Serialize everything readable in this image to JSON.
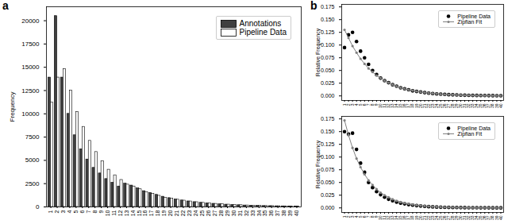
{
  "chart_data": [
    {
      "type": "bar",
      "title": "a",
      "ylabel": "Frequency",
      "categories": [
        "1",
        "2",
        "3",
        "4",
        "5",
        "6",
        "7",
        "8",
        "9",
        "10",
        "11",
        "12",
        "13",
        "14",
        "15",
        "16",
        "17",
        "18",
        "19",
        "20",
        "21",
        "22",
        "23",
        "24",
        "25",
        "26",
        "27",
        "28",
        "29",
        "30",
        "31",
        "32",
        "33",
        "34",
        "35",
        "36",
        "37",
        "38",
        "39",
        "40"
      ],
      "series": [
        {
          "name": "Annotations",
          "color": "#404040",
          "values": [
            13900,
            20500,
            13900,
            10000,
            7700,
            6200,
            5100,
            4200,
            3600,
            3000,
            2600,
            2200,
            2500,
            2300,
            2000,
            1700,
            1500,
            1300,
            1100,
            950,
            800,
            700,
            600,
            520,
            450,
            390,
            340,
            290,
            250,
            220,
            190,
            160,
            140,
            120,
            100,
            90,
            75,
            65,
            55,
            45
          ]
        },
        {
          "name": "Pipeline Data",
          "color": "#ffffff",
          "values": [
            11200,
            13900,
            14800,
            12500,
            10200,
            8600,
            7100,
            5900,
            4900,
            4000,
            3400,
            2900,
            2400,
            2200,
            1900,
            1600,
            1400,
            1200,
            1000,
            900,
            780,
            680,
            590,
            510,
            440,
            380,
            330,
            290,
            250,
            220,
            190,
            160,
            140,
            120,
            100,
            90,
            75,
            65,
            55,
            45
          ]
        }
      ],
      "ylim": [
        0,
        21500
      ],
      "yticks": [
        0,
        2500,
        5000,
        7500,
        10000,
        12500,
        15000,
        17500,
        20000
      ],
      "grid": false,
      "legend": "upper right"
    },
    {
      "type": "line",
      "title": "b",
      "ylabel": "Relative Frequency",
      "categories": [
        "1",
        "2",
        "3",
        "4",
        "5",
        "6",
        "7",
        "8",
        "9",
        "10",
        "11",
        "12",
        "13",
        "14",
        "15",
        "16",
        "17",
        "18",
        "19",
        "20",
        "21",
        "22",
        "23",
        "24",
        "25",
        "26",
        "27",
        "28",
        "29",
        "30",
        "31",
        "32",
        "33",
        "34",
        "35",
        "36",
        "37",
        "38",
        "39",
        "40"
      ],
      "series": [
        {
          "name": "Pipeline Data",
          "type": "scatter",
          "marker": "o",
          "color": "#000000",
          "values": [
            0.095,
            0.12,
            0.125,
            0.107,
            0.088,
            0.075,
            0.062,
            0.05,
            0.042,
            0.035,
            0.03,
            0.026,
            0.022,
            0.019,
            0.016,
            0.014,
            0.012,
            0.01,
            0.0088,
            0.0076,
            0.0065,
            0.0055,
            0.0047,
            0.004,
            0.0034,
            0.003,
            0.0025,
            0.0022,
            0.0019,
            0.0016,
            0.0014,
            0.0012,
            0.001,
            0.0009,
            0.0008,
            0.0007,
            0.0006,
            0.0005,
            0.0004,
            0.0004
          ]
        },
        {
          "name": "Zipfian Fit",
          "type": "line",
          "marker": "o",
          "line_style": "solid",
          "color": "#808080",
          "values": [
            0.13,
            0.114,
            0.098,
            0.085,
            0.073,
            0.063,
            0.054,
            0.047,
            0.04,
            0.035,
            0.03,
            0.026,
            0.022,
            0.019,
            0.016,
            0.014,
            0.012,
            0.0105,
            0.009,
            0.0077,
            0.0066,
            0.0056,
            0.0048,
            0.0041,
            0.0035,
            0.003,
            0.0026,
            0.0022,
            0.0019,
            0.0016,
            0.0014,
            0.0012,
            0.001,
            0.0009,
            0.0008,
            0.0007,
            0.0006,
            0.0005,
            0.0004,
            0.0004
          ]
        }
      ],
      "ylim": [
        -0.009,
        0.18
      ],
      "yticks": [
        {
          "value": 0,
          "label": "0.000"
        },
        {
          "value": 0.025,
          "label": "0.025"
        },
        {
          "value": 0.05,
          "label": "0.050"
        },
        {
          "value": 0.075,
          "label": "0.075"
        },
        {
          "value": 0.1,
          "label": "0.100"
        },
        {
          "value": 0.125,
          "label": "0.125"
        },
        {
          "value": 0.15,
          "label": "0.150"
        },
        {
          "value": 0.175,
          "label": "0.175"
        }
      ],
      "grid": false,
      "legend": "upper right"
    },
    {
      "type": "line",
      "ylabel": "Relative Frequency",
      "categories": [
        "1",
        "2",
        "3",
        "4",
        "5",
        "6",
        "7",
        "8",
        "9",
        "10",
        "11",
        "12",
        "13",
        "14",
        "15",
        "16",
        "17",
        "18",
        "19",
        "20",
        "21",
        "22",
        "23",
        "24",
        "25",
        "26",
        "27",
        "28",
        "29",
        "30",
        "31",
        "32",
        "33",
        "34",
        "35",
        "36",
        "37",
        "38",
        "39",
        "40"
      ],
      "series": [
        {
          "name": "Pipeline Data",
          "type": "scatter",
          "marker": "o",
          "color": "#000000",
          "values": [
            0.15,
            0.145,
            0.147,
            0.115,
            0.088,
            0.07,
            0.05,
            0.04,
            0.032,
            0.026,
            0.021,
            0.017,
            0.014,
            0.0115,
            0.0095,
            0.008,
            0.0065,
            0.0054,
            0.0045,
            0.0037,
            0.003,
            0.0025,
            0.0021,
            0.0017,
            0.0014,
            0.0012,
            0.001,
            0.0008,
            0.0007,
            0.0006,
            0.0005,
            0.0004,
            0.0003,
            0.0003,
            0.0002,
            0.0002,
            0.0002,
            0.0001,
            0.0001,
            0.0001
          ]
        },
        {
          "name": "Zipfian Fit",
          "type": "line",
          "marker": "o",
          "line_style": "solid",
          "color": "#808080",
          "values": [
            0.172,
            0.143,
            0.118,
            0.097,
            0.08,
            0.066,
            0.054,
            0.045,
            0.037,
            0.03,
            0.025,
            0.021,
            0.017,
            0.014,
            0.0115,
            0.0095,
            0.008,
            0.0065,
            0.0054,
            0.0045,
            0.0037,
            0.003,
            0.0025,
            0.0021,
            0.0017,
            0.0014,
            0.0012,
            0.001,
            0.0008,
            0.0007,
            0.0006,
            0.0005,
            0.0004,
            0.0003,
            0.0003,
            0.0002,
            0.0002,
            0.0002,
            0.0001,
            0.0001
          ]
        }
      ],
      "ylim": [
        -0.009,
        0.18
      ],
      "yticks": [
        {
          "value": 0,
          "label": "0.000"
        },
        {
          "value": 0.025,
          "label": "0.025"
        },
        {
          "value": 0.05,
          "label": "0.050"
        },
        {
          "value": 0.075,
          "label": "0.075"
        },
        {
          "value": 0.1,
          "label": "0.100"
        },
        {
          "value": 0.125,
          "label": "0.125"
        },
        {
          "value": 0.15,
          "label": "0.150"
        },
        {
          "value": 0.175,
          "label": "0.175"
        }
      ],
      "grid": false,
      "legend": "upper right"
    }
  ]
}
